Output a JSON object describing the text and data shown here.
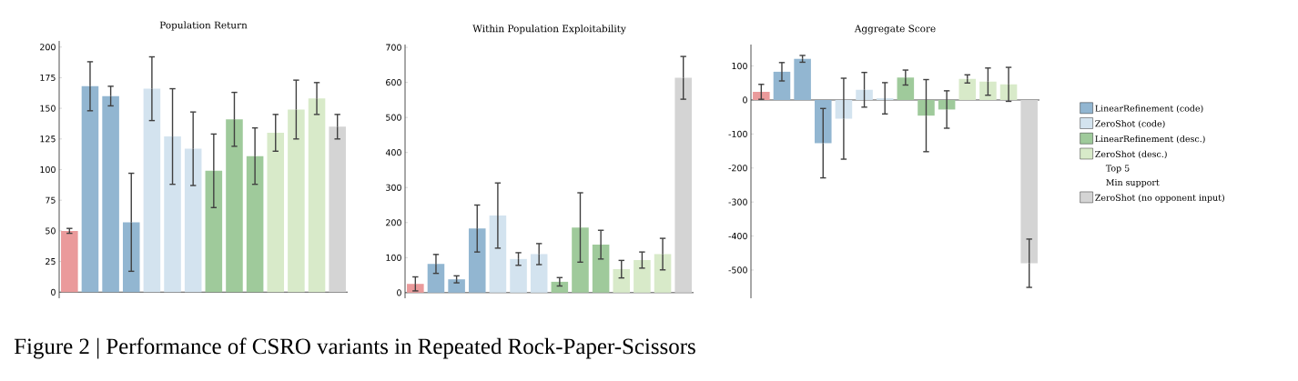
{
  "chart_data": [
    {
      "type": "bar",
      "title": "Population Return",
      "categories": [
        null,
        null,
        null,
        null,
        null,
        null,
        null,
        null,
        null,
        null,
        null,
        null,
        null,
        null
      ],
      "ylim": [
        -5,
        205
      ],
      "yticks": [
        0,
        25,
        50,
        75,
        100,
        125,
        150,
        175,
        200
      ],
      "annotations": [
        "Figure 2 | Performance of CSRO variants in Repeated Rock-Paper-Scissors"
      ],
      "series": [
        {
          "color": "#ea9a9b",
          "values": [
            50,
            null,
            null,
            null,
            null,
            null,
            null,
            null,
            null,
            null,
            null,
            null,
            null,
            null
          ],
          "errors": [
            2,
            null,
            null,
            null,
            null,
            null,
            null,
            null,
            null,
            null,
            null,
            null,
            null,
            null
          ]
        },
        {
          "color": "#92b6d1",
          "values": [
            null,
            168,
            160,
            57,
            null,
            null,
            null,
            null,
            null,
            null,
            null,
            null,
            null,
            null
          ],
          "errors": [
            null,
            20,
            8,
            40,
            null,
            null,
            null,
            null,
            null,
            null,
            null,
            null,
            null,
            null
          ]
        },
        {
          "color": "#d3e3ef",
          "values": [
            null,
            null,
            null,
            null,
            166,
            127,
            117,
            null,
            null,
            null,
            null,
            null,
            null,
            null
          ],
          "errors": [
            null,
            null,
            null,
            null,
            26,
            39,
            30,
            null,
            null,
            null,
            null,
            null,
            null,
            null
          ]
        },
        {
          "color": "#9fca9b",
          "values": [
            null,
            null,
            null,
            null,
            null,
            null,
            null,
            99,
            141,
            111,
            null,
            null,
            null,
            null
          ],
          "errors": [
            null,
            null,
            null,
            null,
            null,
            null,
            null,
            30,
            22,
            23,
            null,
            null,
            null,
            null
          ]
        },
        {
          "color": "#d8eac9",
          "values": [
            null,
            null,
            null,
            null,
            null,
            null,
            null,
            null,
            null,
            null,
            130,
            149,
            158,
            null
          ],
          "errors": [
            null,
            null,
            null,
            null,
            null,
            null,
            null,
            null,
            null,
            null,
            15,
            24,
            13,
            null
          ]
        },
        {
          "color": "#d4d4d4",
          "values": [
            null,
            null,
            null,
            null,
            null,
            null,
            null,
            null,
            null,
            null,
            null,
            null,
            null,
            135
          ],
          "errors": [
            null,
            null,
            null,
            null,
            null,
            null,
            null,
            null,
            null,
            null,
            null,
            null,
            null,
            10
          ]
        }
      ]
    },
    {
      "type": "bar",
      "title": "Within Population Exploitability",
      "categories": [
        null,
        null,
        null,
        null,
        null,
        null,
        null,
        null,
        null,
        null,
        null,
        null,
        null,
        null
      ],
      "ylim": [
        -16,
        708
      ],
      "yticks": [
        0,
        100,
        200,
        300,
        400,
        500,
        600,
        700
      ],
      "series": [
        {
          "color": "#ea9a9b",
          "values": [
            25,
            null,
            null,
            null,
            null,
            null,
            null,
            null,
            null,
            null,
            null,
            null,
            null,
            null
          ],
          "errors": [
            20,
            null,
            null,
            null,
            null,
            null,
            null,
            null,
            null,
            null,
            null,
            null,
            null,
            null
          ]
        },
        {
          "color": "#92b6d1",
          "values": [
            null,
            82,
            38,
            183,
            null,
            null,
            null,
            null,
            null,
            null,
            null,
            null,
            null,
            null
          ],
          "errors": [
            null,
            27,
            10,
            67,
            null,
            null,
            null,
            null,
            null,
            null,
            null,
            null,
            null,
            null
          ]
        },
        {
          "color": "#d3e3ef",
          "values": [
            null,
            null,
            null,
            null,
            220,
            96,
            110,
            null,
            null,
            null,
            null,
            null,
            null,
            null
          ],
          "errors": [
            null,
            null,
            null,
            null,
            93,
            18,
            30,
            null,
            null,
            null,
            null,
            null,
            null,
            null
          ]
        },
        {
          "color": "#9fca9b",
          "values": [
            null,
            null,
            null,
            null,
            null,
            null,
            null,
            31,
            186,
            137,
            null,
            null,
            null,
            null
          ],
          "errors": [
            null,
            null,
            null,
            null,
            null,
            null,
            null,
            12,
            99,
            41,
            null,
            null,
            null,
            null
          ]
        },
        {
          "color": "#d8eac9",
          "values": [
            null,
            null,
            null,
            null,
            null,
            null,
            null,
            null,
            null,
            null,
            67,
            93,
            110,
            null
          ],
          "errors": [
            null,
            null,
            null,
            null,
            null,
            null,
            null,
            null,
            null,
            null,
            25,
            23,
            45,
            null
          ]
        },
        {
          "color": "#d4d4d4",
          "values": [
            null,
            null,
            null,
            null,
            null,
            null,
            null,
            null,
            null,
            null,
            null,
            null,
            null,
            613
          ],
          "errors": [
            null,
            null,
            null,
            null,
            null,
            null,
            null,
            null,
            null,
            null,
            null,
            null,
            null,
            61
          ]
        }
      ]
    },
    {
      "type": "bar",
      "title": "Aggregate Score",
      "categories": [
        null,
        null,
        null,
        null,
        null,
        null,
        null,
        null,
        null,
        null,
        null,
        null,
        null,
        null
      ],
      "ylim": [
        -583,
        163
      ],
      "yticks": [
        -500,
        -400,
        -300,
        -200,
        -100,
        0,
        100
      ],
      "legend": "right",
      "annotations": [
        "Top 5",
        "Min support"
      ],
      "series": [
        {
          "color": "#ea9a9b",
          "values": [
            24,
            null,
            null,
            null,
            null,
            null,
            null,
            null,
            null,
            null,
            null,
            null,
            null,
            null
          ],
          "errors": [
            22,
            null,
            null,
            null,
            null,
            null,
            null,
            null,
            null,
            null,
            null,
            null,
            null,
            null
          ]
        },
        {
          "name": "LinearRefinement (code)",
          "color": "#92b6d1",
          "values": [
            null,
            83,
            121,
            -127,
            null,
            null,
            null,
            null,
            null,
            null,
            null,
            null,
            null,
            null
          ],
          "errors": [
            null,
            27,
            10,
            102,
            null,
            null,
            null,
            null,
            null,
            null,
            null,
            null,
            null,
            null
          ]
        },
        {
          "name": "ZeroShot (code)",
          "color": "#d3e3ef",
          "values": [
            null,
            null,
            null,
            null,
            -55,
            30,
            5,
            null,
            null,
            null,
            null,
            null,
            null,
            null
          ],
          "errors": [
            null,
            null,
            null,
            null,
            119,
            51,
            46,
            null,
            null,
            null,
            null,
            null,
            null,
            null
          ]
        },
        {
          "name": "LinearRefinement (desc.)",
          "color": "#9fca9b",
          "values": [
            null,
            null,
            null,
            null,
            null,
            null,
            null,
            66,
            -46,
            -28,
            null,
            null,
            null,
            null
          ],
          "errors": [
            null,
            null,
            null,
            null,
            null,
            null,
            null,
            22,
            106,
            55,
            null,
            null,
            null,
            null
          ]
        },
        {
          "name": "ZeroShot (desc.)",
          "color": "#d8eac9",
          "values": [
            null,
            null,
            null,
            null,
            null,
            null,
            null,
            null,
            null,
            null,
            62,
            54,
            46,
            null
          ],
          "errors": [
            null,
            null,
            null,
            null,
            null,
            null,
            null,
            null,
            null,
            null,
            12,
            40,
            50,
            null
          ]
        },
        {
          "name": "ZeroShot (no opponent input)",
          "color": "#d4d4d4",
          "values": [
            null,
            null,
            null,
            null,
            null,
            null,
            null,
            null,
            null,
            null,
            null,
            null,
            null,
            -480
          ],
          "errors": [
            null,
            null,
            null,
            null,
            null,
            null,
            null,
            null,
            null,
            null,
            null,
            null,
            null,
            71
          ]
        }
      ]
    }
  ]
}
